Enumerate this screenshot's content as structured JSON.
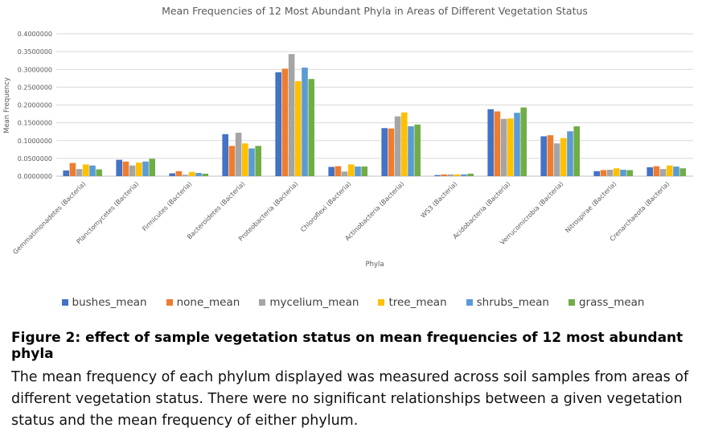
{
  "chart_data": {
    "type": "bar",
    "title": "Mean Frequencies of  12 Most Abundant Phyla in Areas of Different Vegetation Status",
    "xlabel": "Phyla",
    "ylabel": "Mean Frequency",
    "ylim": [
      0,
      0.4
    ],
    "yticks": [
      "0.0000000",
      "0.0500000",
      "0.1000000",
      "0.1500000",
      "0.2000000",
      "0.2500000",
      "0.3000000",
      "0.3500000",
      "0.4000000"
    ],
    "grid": true,
    "legend_position": "bottom",
    "categories": [
      "Gemmatimonadetes (Bacteria)",
      "Planctomycetes (Bacteria)",
      "Firmicutes (Bacteria)",
      "Bacteroidetes (Bacteria)",
      "Proteobacteria (Bacteria)",
      "Chloroflexi (Bacteria)",
      "Actinobacteria (Bacteria)",
      "WS3 (Bacteria)",
      "Acidobacteria (Bacteria)",
      "Verrucomicrobia (Bacteria)",
      "Nitrospirae (Bacteria)",
      "Crenarchaeota (Bacteria)"
    ],
    "series": [
      {
        "name": "bushes_mean",
        "color": "#4472C4",
        "values": [
          0.016,
          0.046,
          0.008,
          0.118,
          0.292,
          0.026,
          0.135,
          0.003,
          0.188,
          0.112,
          0.014,
          0.025
        ]
      },
      {
        "name": "none_mean",
        "color": "#ED7D31",
        "values": [
          0.037,
          0.041,
          0.014,
          0.085,
          0.302,
          0.028,
          0.134,
          0.005,
          0.182,
          0.115,
          0.017,
          0.028
        ]
      },
      {
        "name": "mycelium_mean",
        "color": "#A5A5A5",
        "values": [
          0.02,
          0.03,
          0.004,
          0.122,
          0.343,
          0.013,
          0.168,
          0.005,
          0.161,
          0.092,
          0.018,
          0.02
        ]
      },
      {
        "name": "tree_mean",
        "color": "#FFC000",
        "values": [
          0.033,
          0.038,
          0.012,
          0.092,
          0.267,
          0.033,
          0.179,
          0.005,
          0.162,
          0.107,
          0.022,
          0.03
        ]
      },
      {
        "name": "shrubs_mean",
        "color": "#5B9BD5",
        "values": [
          0.03,
          0.041,
          0.009,
          0.078,
          0.305,
          0.027,
          0.14,
          0.005,
          0.178,
          0.126,
          0.018,
          0.027
        ]
      },
      {
        "name": "grass_mean",
        "color": "#70AD47",
        "values": [
          0.019,
          0.049,
          0.007,
          0.085,
          0.273,
          0.027,
          0.145,
          0.007,
          0.193,
          0.14,
          0.017,
          0.022
        ]
      }
    ]
  },
  "caption": {
    "title": "Figure 2: effect of sample vegetation status on mean frequencies of 12 most abundant phyla",
    "body": "The mean frequency of each phylum displayed was measured across soil samples from areas of different vegetation status. There were no significant relationships between a given vegetation status and the mean frequency of either phylum."
  }
}
